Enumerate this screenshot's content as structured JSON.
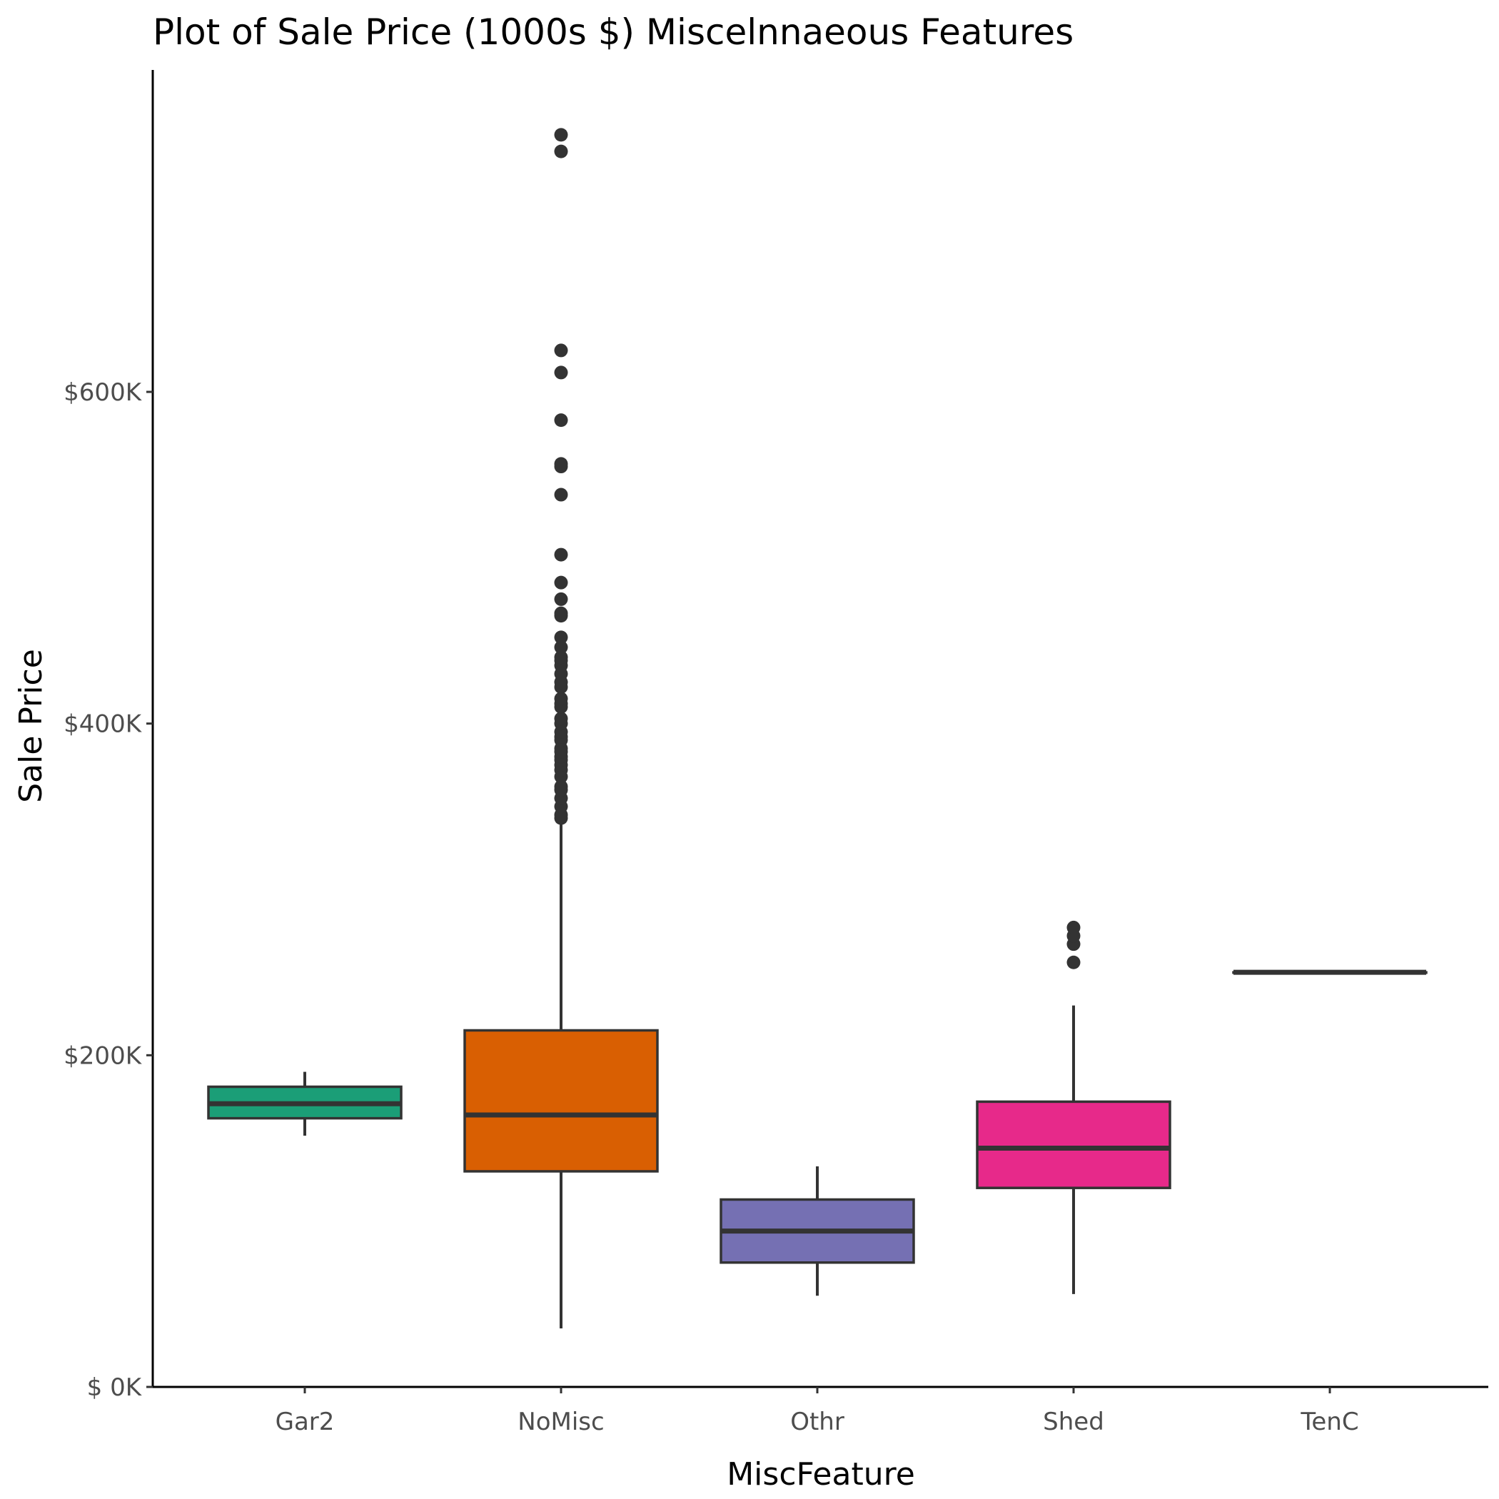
{
  "chart_data": {
    "type": "box",
    "title": "Plot of Sale Price (1000s $) Miscelnnaeous Features",
    "xlabel": "MiscFeature",
    "ylabel": "Sale Price",
    "ylim": [
      0,
      755000
    ],
    "yticks": [
      {
        "value": 0,
        "label": "$  0K"
      },
      {
        "value": 200000,
        "label": "$200K"
      },
      {
        "value": 400000,
        "label": "$400K"
      },
      {
        "value": 600000,
        "label": "$600K"
      }
    ],
    "grid": false,
    "legend": "none",
    "categories": [
      "Gar2",
      "NoMisc",
      "Othr",
      "Shed",
      "TenC"
    ],
    "series": [
      {
        "category": "Gar2",
        "color": "#1b9e77",
        "whisker_low": 151500,
        "q1": 162000,
        "median": 170750,
        "q3": 181000,
        "whisker_high": 190000,
        "outliers": []
      },
      {
        "category": "NoMisc",
        "color": "#d95f02",
        "whisker_low": 35311,
        "q1": 130000,
        "median": 164000,
        "q3": 215000,
        "whisker_high": 340000,
        "outliers": [
          343000,
          345000,
          350000,
          355000,
          360000,
          362000,
          368000,
          372000,
          375000,
          378000,
          380000,
          383000,
          385000,
          390000,
          392000,
          395000,
          400000,
          403000,
          410000,
          412000,
          415000,
          422000,
          425000,
          430000,
          435000,
          438000,
          440000,
          446000,
          452000,
          465000,
          466500,
          475000,
          485000,
          501837,
          538000,
          555000,
          556581,
          582933,
          611657,
          625000,
          745000,
          755000
        ]
      },
      {
        "category": "Othr",
        "color": "#7570b3",
        "whisker_low": 55000,
        "q1": 75000,
        "median": 94000,
        "q3": 113000,
        "whisker_high": 133000,
        "outliers": []
      },
      {
        "category": "Shed",
        "color": "#e7298a",
        "whisker_low": 55993,
        "q1": 120000,
        "median": 144000,
        "q3": 172000,
        "whisker_high": 230000,
        "outliers": [
          256000,
          267000,
          272000,
          277000
        ]
      },
      {
        "category": "TenC",
        "color": "#66a61e",
        "whisker_low": 250000,
        "q1": 250000,
        "median": 250000,
        "q3": 250000,
        "whisker_high": 250000,
        "outliers": []
      }
    ]
  }
}
